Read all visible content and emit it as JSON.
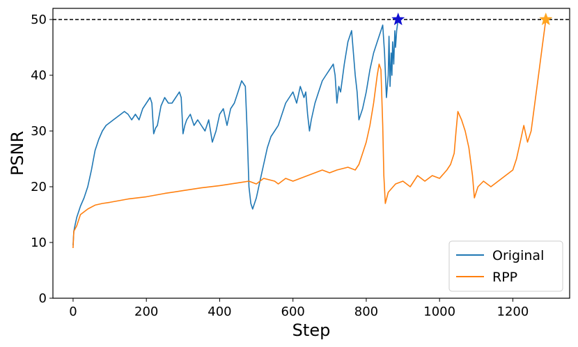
{
  "chart_data": {
    "type": "line",
    "title": "",
    "xlabel": "Step",
    "ylabel": "PSNR",
    "xlim": [
      -55,
      1355
    ],
    "ylim": [
      0,
      52
    ],
    "xticks": [
      0,
      200,
      400,
      600,
      800,
      1000,
      1200
    ],
    "yticks": [
      0,
      10,
      20,
      30,
      40,
      50
    ],
    "grid": false,
    "legend": "bottom-right",
    "reference_line": {
      "y": 50,
      "style": "dashed",
      "color": "#000000"
    },
    "series": [
      {
        "name": "Original",
        "color": "#1f77b4",
        "points": [
          [
            0,
            9.5
          ],
          [
            2,
            12
          ],
          [
            5,
            13
          ],
          [
            10,
            14.5
          ],
          [
            20,
            16.5
          ],
          [
            30,
            18
          ],
          [
            40,
            20
          ],
          [
            50,
            23
          ],
          [
            60,
            26.5
          ],
          [
            70,
            28.5
          ],
          [
            80,
            30
          ],
          [
            90,
            31
          ],
          [
            100,
            31.5
          ],
          [
            110,
            32
          ],
          [
            120,
            32.5
          ],
          [
            130,
            33
          ],
          [
            140,
            33.5
          ],
          [
            150,
            33
          ],
          [
            160,
            32
          ],
          [
            170,
            33
          ],
          [
            180,
            32
          ],
          [
            190,
            34
          ],
          [
            200,
            35
          ],
          [
            210,
            36
          ],
          [
            215,
            35
          ],
          [
            220,
            29.5
          ],
          [
            225,
            30.5
          ],
          [
            230,
            31
          ],
          [
            240,
            34.5
          ],
          [
            250,
            36
          ],
          [
            260,
            35
          ],
          [
            270,
            35
          ],
          [
            280,
            36
          ],
          [
            290,
            37
          ],
          [
            295,
            36
          ],
          [
            300,
            29.5
          ],
          [
            305,
            31
          ],
          [
            310,
            32
          ],
          [
            320,
            33
          ],
          [
            330,
            31
          ],
          [
            340,
            32
          ],
          [
            350,
            31
          ],
          [
            360,
            30
          ],
          [
            370,
            32
          ],
          [
            380,
            28
          ],
          [
            390,
            30
          ],
          [
            400,
            33
          ],
          [
            410,
            34
          ],
          [
            420,
            31
          ],
          [
            430,
            34
          ],
          [
            440,
            35
          ],
          [
            450,
            37
          ],
          [
            460,
            39
          ],
          [
            470,
            38
          ],
          [
            475,
            30
          ],
          [
            480,
            20
          ],
          [
            485,
            17
          ],
          [
            490,
            16
          ],
          [
            500,
            18
          ],
          [
            510,
            21
          ],
          [
            520,
            24
          ],
          [
            530,
            27
          ],
          [
            540,
            29
          ],
          [
            550,
            30
          ],
          [
            560,
            31
          ],
          [
            570,
            33
          ],
          [
            580,
            35
          ],
          [
            590,
            36
          ],
          [
            600,
            37
          ],
          [
            610,
            35
          ],
          [
            620,
            38
          ],
          [
            630,
            36
          ],
          [
            635,
            37
          ],
          [
            640,
            33
          ],
          [
            645,
            30
          ],
          [
            650,
            32
          ],
          [
            660,
            35
          ],
          [
            670,
            37
          ],
          [
            680,
            39
          ],
          [
            690,
            40
          ],
          [
            700,
            41
          ],
          [
            710,
            42
          ],
          [
            715,
            40
          ],
          [
            720,
            35
          ],
          [
            725,
            38
          ],
          [
            730,
            37
          ],
          [
            740,
            42
          ],
          [
            750,
            46
          ],
          [
            760,
            48
          ],
          [
            770,
            40
          ],
          [
            775,
            37
          ],
          [
            780,
            32
          ],
          [
            790,
            34
          ],
          [
            800,
            37
          ],
          [
            810,
            41
          ],
          [
            820,
            44
          ],
          [
            830,
            46
          ],
          [
            840,
            48
          ],
          [
            845,
            49
          ],
          [
            850,
            44
          ],
          [
            855,
            36
          ],
          [
            860,
            40
          ],
          [
            862,
            47
          ],
          [
            865,
            38
          ],
          [
            868,
            44
          ],
          [
            870,
            40
          ],
          [
            872,
            46
          ],
          [
            875,
            42
          ],
          [
            878,
            48
          ],
          [
            880,
            45
          ],
          [
            883,
            48
          ],
          [
            887,
            50
          ]
        ]
      },
      {
        "name": "RPP",
        "color": "#ff7f0e",
        "points": [
          [
            0,
            9
          ],
          [
            2,
            12
          ],
          [
            10,
            13
          ],
          [
            20,
            15
          ],
          [
            40,
            16
          ],
          [
            60,
            16.7
          ],
          [
            80,
            17
          ],
          [
            100,
            17.2
          ],
          [
            150,
            17.8
          ],
          [
            200,
            18.2
          ],
          [
            250,
            18.8
          ],
          [
            300,
            19.3
          ],
          [
            350,
            19.8
          ],
          [
            400,
            20.2
          ],
          [
            450,
            20.7
          ],
          [
            480,
            21
          ],
          [
            500,
            20.5
          ],
          [
            520,
            21.5
          ],
          [
            550,
            21
          ],
          [
            560,
            20.5
          ],
          [
            580,
            21.5
          ],
          [
            600,
            21
          ],
          [
            620,
            21.5
          ],
          [
            640,
            22
          ],
          [
            660,
            22.5
          ],
          [
            680,
            23
          ],
          [
            700,
            22.5
          ],
          [
            720,
            23
          ],
          [
            750,
            23.5
          ],
          [
            770,
            23
          ],
          [
            780,
            24
          ],
          [
            790,
            26
          ],
          [
            800,
            28
          ],
          [
            810,
            31
          ],
          [
            820,
            35
          ],
          [
            830,
            40
          ],
          [
            835,
            42
          ],
          [
            840,
            41
          ],
          [
            845,
            31
          ],
          [
            848,
            22
          ],
          [
            852,
            17
          ],
          [
            860,
            19
          ],
          [
            880,
            20.5
          ],
          [
            900,
            21
          ],
          [
            920,
            20
          ],
          [
            940,
            22
          ],
          [
            960,
            21
          ],
          [
            980,
            22
          ],
          [
            1000,
            21.5
          ],
          [
            1020,
            23
          ],
          [
            1030,
            24
          ],
          [
            1040,
            26
          ],
          [
            1045,
            30
          ],
          [
            1050,
            33.5
          ],
          [
            1060,
            32
          ],
          [
            1070,
            30
          ],
          [
            1080,
            27
          ],
          [
            1090,
            22
          ],
          [
            1095,
            18
          ],
          [
            1105,
            20
          ],
          [
            1120,
            21
          ],
          [
            1140,
            20
          ],
          [
            1160,
            21
          ],
          [
            1180,
            22
          ],
          [
            1200,
            23
          ],
          [
            1210,
            25
          ],
          [
            1220,
            28
          ],
          [
            1230,
            31
          ],
          [
            1240,
            28
          ],
          [
            1250,
            30
          ],
          [
            1260,
            35
          ],
          [
            1270,
            40
          ],
          [
            1280,
            45
          ],
          [
            1290,
            50
          ]
        ]
      }
    ],
    "endpoint_markers": [
      {
        "series": "Original",
        "x": 887,
        "y": 50,
        "shape": "star",
        "color": "#1010d0"
      },
      {
        "series": "RPP",
        "x": 1290,
        "y": 50,
        "shape": "star",
        "color": "#ffa51f"
      }
    ]
  }
}
